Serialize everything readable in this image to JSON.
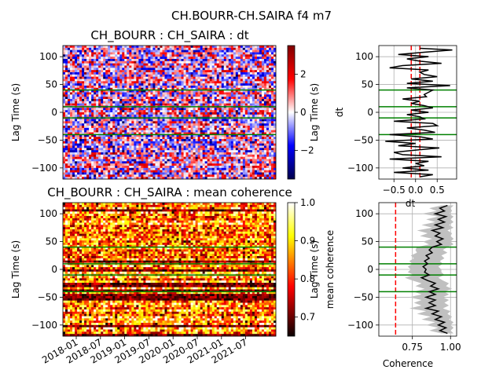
{
  "figure": {
    "suptitle": "CH.BOURR-CH.SAIRA f4 m7"
  },
  "chart_data": [
    {
      "id": "dt-heatmap",
      "type": "heatmap",
      "title": "CH_BOURR : CH_SAIRA : dt",
      "ylabel": "Lag Time (s)",
      "yticks": [
        100,
        50,
        0,
        -50,
        -100
      ],
      "ylim": [
        -120,
        120
      ],
      "colormap": "seismic",
      "colorbar": {
        "ticks": [
          2,
          0,
          -2
        ],
        "tick_labels": [
          "2",
          "0",
          "−2"
        ],
        "range": [
          -3.5,
          3.5
        ]
      },
      "hlines": [
        40,
        10,
        -10,
        -40
      ],
      "hline_color": "#008000",
      "grid": false
    },
    {
      "id": "dt-profile",
      "type": "line",
      "ylabel": "Lag Time (s)",
      "xlabel_secondary": "dt",
      "xlabel_partial": "dt",
      "xticks": [
        -0.5,
        0.0,
        0.5
      ],
      "xtick_labels": [
        "−0.5",
        "0.0",
        "0.5"
      ],
      "xlim": [
        -0.85,
        0.95
      ],
      "yticks": [
        100,
        50,
        0,
        -50,
        -100
      ],
      "ylim": [
        -120,
        120
      ],
      "vlines": [
        -0.1,
        0.1
      ],
      "vline_color": "#ff0000",
      "hlines": [
        40,
        10,
        -10,
        -40
      ],
      "hline_color": "#008000",
      "grid": true,
      "series": [
        {
          "values": [
            [
              0.1,
              115
            ],
            [
              0.85,
              112
            ],
            [
              0.2,
              108
            ],
            [
              -0.4,
              104
            ],
            [
              0.3,
              100
            ],
            [
              -0.2,
              96
            ],
            [
              0.1,
              92
            ],
            [
              0.6,
              88
            ],
            [
              -0.3,
              84
            ],
            [
              -0.6,
              80
            ],
            [
              0.3,
              76
            ],
            [
              0.1,
              72
            ],
            [
              0.2,
              68
            ],
            [
              0.5,
              64
            ],
            [
              -0.1,
              60
            ],
            [
              0.4,
              56
            ],
            [
              -0.2,
              52
            ],
            [
              0.8,
              48
            ],
            [
              -0.2,
              44
            ],
            [
              0.4,
              40
            ],
            [
              0.3,
              36
            ],
            [
              0.2,
              32
            ],
            [
              0.25,
              28
            ],
            [
              -0.3,
              24
            ],
            [
              0.1,
              20
            ],
            [
              -0.1,
              16
            ],
            [
              0.2,
              12
            ],
            [
              0.4,
              8
            ],
            [
              -0.1,
              4
            ],
            [
              0.3,
              0
            ],
            [
              -0.2,
              -4
            ],
            [
              0.1,
              -8
            ],
            [
              0.2,
              -12
            ],
            [
              -0.5,
              -16
            ],
            [
              0.4,
              -20
            ],
            [
              0.5,
              -24
            ],
            [
              -0.2,
              -28
            ],
            [
              0.2,
              -32
            ],
            [
              0.45,
              -36
            ],
            [
              -0.6,
              -40
            ],
            [
              0.1,
              -44
            ],
            [
              0.4,
              -48
            ],
            [
              -0.7,
              -52
            ],
            [
              0.0,
              -56
            ],
            [
              -0.4,
              -60
            ],
            [
              0.55,
              -64
            ],
            [
              0.0,
              -68
            ],
            [
              -0.5,
              -72
            ],
            [
              -0.3,
              -76
            ],
            [
              0.6,
              -80
            ],
            [
              -0.6,
              -84
            ],
            [
              0.3,
              -88
            ],
            [
              0.0,
              -92
            ],
            [
              0.2,
              -96
            ],
            [
              -0.3,
              -100
            ],
            [
              0.3,
              -104
            ],
            [
              -0.5,
              -108
            ],
            [
              0.4,
              -112
            ],
            [
              0.1,
              -116
            ]
          ]
        }
      ]
    },
    {
      "id": "coh-heatmap",
      "type": "heatmap",
      "title": "CH_BOURR : CH_SAIRA : mean coherence",
      "ylabel": "Lag Time (s)",
      "yticks": [
        100,
        50,
        0,
        -50,
        -100
      ],
      "ylim": [
        -120,
        120
      ],
      "x_tick_labels": [
        "2018-01",
        "2018-07",
        "2019-01",
        "2019-07",
        "2020-01",
        "2020-07",
        "2021-01",
        "2021-07"
      ],
      "colormap": "hot",
      "colorbar": {
        "ticks": [
          1.0,
          0.9,
          0.8,
          0.7
        ],
        "tick_labels": [
          "1.0",
          "0.9",
          "0.8",
          "0.7"
        ],
        "range": [
          0.65,
          1.0
        ]
      },
      "hlines": [
        40,
        10,
        -10,
        -40
      ],
      "hline_color": "#008000",
      "grid": false
    },
    {
      "id": "coh-profile",
      "type": "line",
      "xlabel": "Coherence",
      "ylabel": "Lag Time (s)",
      "ylabel_secondary": "mean coherence",
      "xticks": [
        0.75,
        1.0
      ],
      "xtick_labels": [
        "0.75",
        "1.00"
      ],
      "xlim": [
        0.53,
        1.04
      ],
      "yticks": [
        100,
        50,
        0,
        -50,
        -100
      ],
      "ylim": [
        -120,
        120
      ],
      "vlines": [
        0.64
      ],
      "vline_color": "#ff0000",
      "hlines": [
        40,
        10,
        -10,
        -40
      ],
      "hline_color": "#008000",
      "grid": true,
      "series": [
        {
          "values": [
            [
              0.98,
              115
            ],
            [
              0.93,
              110
            ],
            [
              0.96,
              105
            ],
            [
              0.9,
              100
            ],
            [
              0.97,
              95
            ],
            [
              0.92,
              90
            ],
            [
              0.96,
              85
            ],
            [
              0.9,
              80
            ],
            [
              0.95,
              75
            ],
            [
              0.88,
              70
            ],
            [
              0.93,
              65
            ],
            [
              0.9,
              60
            ],
            [
              0.95,
              55
            ],
            [
              0.91,
              50
            ],
            [
              0.94,
              45
            ],
            [
              0.88,
              40
            ],
            [
              0.86,
              35
            ],
            [
              0.88,
              30
            ],
            [
              0.84,
              25
            ],
            [
              0.86,
              20
            ],
            [
              0.83,
              15
            ],
            [
              0.85,
              10
            ],
            [
              0.82,
              5
            ],
            [
              0.84,
              0
            ],
            [
              0.83,
              -5
            ],
            [
              0.86,
              -10
            ],
            [
              0.81,
              -15
            ],
            [
              0.85,
              -20
            ],
            [
              0.9,
              -25
            ],
            [
              0.87,
              -30
            ],
            [
              0.92,
              -35
            ],
            [
              0.86,
              -40
            ],
            [
              0.9,
              -45
            ],
            [
              0.84,
              -50
            ],
            [
              0.9,
              -55
            ],
            [
              0.86,
              -60
            ],
            [
              0.9,
              -65
            ],
            [
              0.84,
              -70
            ],
            [
              0.92,
              -75
            ],
            [
              0.88,
              -80
            ],
            [
              0.94,
              -85
            ],
            [
              0.9,
              -90
            ],
            [
              0.96,
              -95
            ],
            [
              0.92,
              -100
            ],
            [
              0.97,
              -105
            ],
            [
              0.93,
              -110
            ],
            [
              0.98,
              -115
            ]
          ]
        },
        {
          "band_halfwidth": [
            0.04,
            0.07,
            0.05,
            0.09,
            0.05,
            0.08,
            0.06,
            0.09,
            0.07,
            0.1,
            0.08,
            0.1,
            0.07,
            0.09,
            0.08,
            0.1,
            0.09,
            0.1,
            0.1,
            0.1,
            0.1,
            0.1,
            0.1,
            0.1,
            0.11,
            0.1,
            0.11,
            0.1,
            0.09,
            0.1,
            0.09,
            0.1,
            0.09,
            0.11,
            0.09,
            0.1,
            0.09,
            0.11,
            0.08,
            0.1,
            0.07,
            0.09,
            0.06,
            0.08,
            0.05,
            0.07,
            0.04
          ]
        }
      ]
    }
  ]
}
